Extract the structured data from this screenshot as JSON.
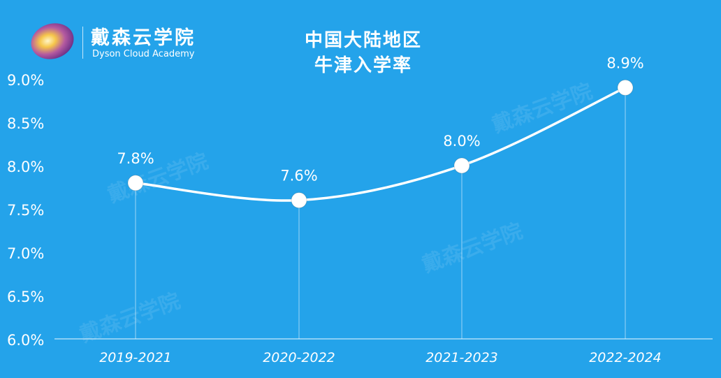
{
  "brand": {
    "name_cn": "戴森云学院",
    "name_en": "Dyson Cloud Academy",
    "logo_icon": "purple-planet-logo-icon"
  },
  "colors": {
    "background": "#24a3ea",
    "line": "#ffffff",
    "text": "#ffffff"
  },
  "chart_data": {
    "type": "line",
    "title_lines": [
      "中国大陆地区",
      "牛津入学率"
    ],
    "xlabel": "",
    "ylabel": "",
    "categories": [
      "2019-2021",
      "2020-2022",
      "2021-2023",
      "2022-2024"
    ],
    "series": [
      {
        "values": [
          7.8,
          7.6,
          8.0,
          8.9
        ],
        "labels": [
          "7.8%",
          "7.6%",
          "8.0%",
          "8.9%"
        ]
      }
    ],
    "ylim": [
      6.0,
      9.0
    ],
    "yticks": [
      "6.0%",
      "6.5%",
      "7.0%",
      "7.5%",
      "8.0%",
      "8.5%",
      "9.0%"
    ],
    "smooth": true,
    "grid": false,
    "drop_lines": true,
    "legend": "none"
  }
}
